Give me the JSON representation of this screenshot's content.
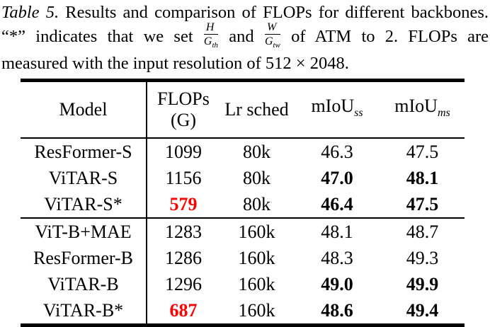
{
  "colors": {
    "highlight_red": "#ff0000",
    "text": "#000000",
    "background": "#ffffff"
  },
  "caption": {
    "tag": "Table 5.",
    "line1_rest": "Results and comparison of FLOPs for different backbones.",
    "line2_prefix": "“*” indicates that we set",
    "frac1_num": "H",
    "frac1_den_base": "G",
    "frac1_den_sub": "th",
    "line2_and": "and",
    "frac2_num": "W",
    "frac2_den_base": "G",
    "frac2_den_sub": "tw",
    "line2_suffix": "of ATM to 2. FLOPs are",
    "line3": "measured with the input resolution of 512 × 2048."
  },
  "table": {
    "header": {
      "model": "Model",
      "flops_line1": "FLOPs",
      "flops_line2": "(G)",
      "lr_sched": "Lr sched",
      "miou_base": "mIoU",
      "miou_ss_sub": "ss",
      "miou_ms_sub": "ms"
    },
    "groups": [
      {
        "rows": [
          {
            "model": "ResFormer-S",
            "flops": "1099",
            "lr": "80k",
            "miou_ss": "46.3",
            "miou_ms": "47.5"
          },
          {
            "model": "ViTAR-S",
            "flops": "1156",
            "lr": "80k",
            "miou_ss": "47.0",
            "miou_ss_style": "bold",
            "miou_ms": "48.1",
            "miou_ms_style": "bold"
          },
          {
            "model": "ViTAR-S*",
            "flops": "579",
            "flops_style": "red bold",
            "lr": "80k",
            "miou_ss": "46.4",
            "miou_ss_style": "bold",
            "miou_ms": "47.5",
            "miou_ms_style": "bold"
          }
        ]
      },
      {
        "rows": [
          {
            "model": "ViT-B+MAE",
            "flops": "1283",
            "lr": "160k",
            "miou_ss": "48.1",
            "miou_ms": "48.7"
          },
          {
            "model": "ResFormer-B",
            "flops": "1286",
            "lr": "160k",
            "miou_ss": "48.3",
            "miou_ms": "49.3"
          },
          {
            "model": "ViTAR-B",
            "flops": "1296",
            "lr": "160k",
            "miou_ss": "49.0",
            "miou_ss_style": "bold",
            "miou_ms": "49.9",
            "miou_ms_style": "bold"
          },
          {
            "model": "ViTAR-B*",
            "flops": "687",
            "flops_style": "red bold",
            "lr": "160k",
            "miou_ss": "48.6",
            "miou_ss_style": "bold",
            "miou_ms": "49.4",
            "miou_ms_style": "bold"
          }
        ]
      }
    ]
  }
}
